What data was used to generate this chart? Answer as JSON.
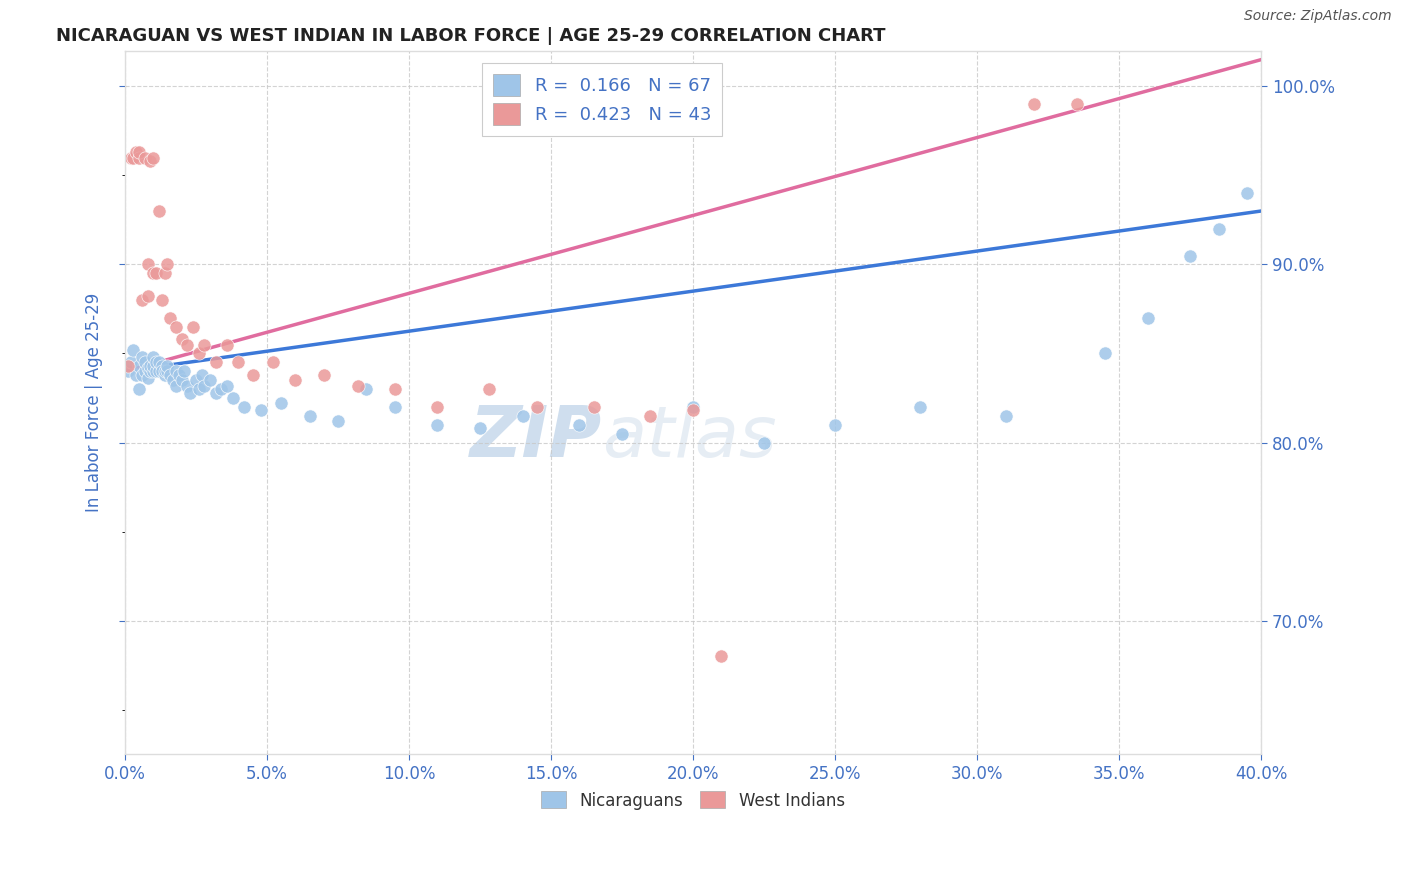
{
  "title": "NICARAGUAN VS WEST INDIAN IN LABOR FORCE | AGE 25-29 CORRELATION CHART",
  "source": "Source: ZipAtlas.com",
  "ylabel_left": "In Labor Force | Age 25-29",
  "xlim": [
    0.0,
    0.4
  ],
  "ylim": [
    0.625,
    1.02
  ],
  "legend_r1": "R =  0.166",
  "legend_n1": "N = 67",
  "legend_r2": "R =  0.423",
  "legend_n2": "N = 43",
  "blue_color": "#9fc5e8",
  "pink_color": "#ea9999",
  "blue_line_color": "#3c78d8",
  "pink_line_color": "#e06c9f",
  "label_nicaraguans": "Nicaraguans",
  "label_westindians": "West Indians",
  "watermark_zip": "ZIP",
  "watermark_atlas": "atlas",
  "title_color": "#222222",
  "axis_label_color": "#4472c4",
  "tick_color": "#4472c4",
  "grid_color": "#c8c8c8",
  "background_color": "#ffffff",
  "blue_trend_x0": 0.0,
  "blue_trend_y0": 0.84,
  "blue_trend_x1": 0.4,
  "blue_trend_y1": 0.93,
  "pink_trend_x0": 0.0,
  "pink_trend_y0": 0.84,
  "pink_trend_x1": 0.4,
  "pink_trend_y1": 1.015,
  "blue_scatter_x": [
    0.001,
    0.002,
    0.003,
    0.004,
    0.005,
    0.005,
    0.006,
    0.006,
    0.007,
    0.007,
    0.008,
    0.008,
    0.009,
    0.009,
    0.01,
    0.01,
    0.01,
    0.011,
    0.011,
    0.012,
    0.012,
    0.013,
    0.013,
    0.014,
    0.014,
    0.015,
    0.015,
    0.016,
    0.017,
    0.018,
    0.018,
    0.019,
    0.02,
    0.021,
    0.022,
    0.023,
    0.025,
    0.026,
    0.027,
    0.028,
    0.03,
    0.032,
    0.034,
    0.036,
    0.038,
    0.042,
    0.048,
    0.055,
    0.065,
    0.075,
    0.085,
    0.095,
    0.11,
    0.125,
    0.14,
    0.16,
    0.175,
    0.2,
    0.225,
    0.25,
    0.28,
    0.31,
    0.345,
    0.36,
    0.375,
    0.385,
    0.395
  ],
  "blue_scatter_y": [
    0.84,
    0.845,
    0.852,
    0.838,
    0.83,
    0.843,
    0.848,
    0.838,
    0.84,
    0.845,
    0.836,
    0.842,
    0.84,
    0.843,
    0.84,
    0.843,
    0.848,
    0.84,
    0.845,
    0.84,
    0.845,
    0.843,
    0.84,
    0.838,
    0.84,
    0.84,
    0.843,
    0.838,
    0.835,
    0.84,
    0.832,
    0.838,
    0.835,
    0.84,
    0.832,
    0.828,
    0.835,
    0.83,
    0.838,
    0.832,
    0.835,
    0.828,
    0.83,
    0.832,
    0.825,
    0.82,
    0.818,
    0.822,
    0.815,
    0.812,
    0.83,
    0.82,
    0.81,
    0.808,
    0.815,
    0.81,
    0.805,
    0.82,
    0.8,
    0.81,
    0.82,
    0.815,
    0.85,
    0.87,
    0.905,
    0.92,
    0.94
  ],
  "pink_scatter_x": [
    0.001,
    0.002,
    0.003,
    0.004,
    0.005,
    0.005,
    0.006,
    0.007,
    0.008,
    0.008,
    0.009,
    0.01,
    0.01,
    0.011,
    0.012,
    0.013,
    0.014,
    0.015,
    0.016,
    0.018,
    0.02,
    0.022,
    0.024,
    0.026,
    0.028,
    0.032,
    0.036,
    0.04,
    0.045,
    0.052,
    0.06,
    0.07,
    0.082,
    0.095,
    0.11,
    0.128,
    0.145,
    0.165,
    0.185,
    0.2,
    0.21,
    0.32,
    0.335
  ],
  "pink_scatter_y": [
    0.843,
    0.96,
    0.96,
    0.963,
    0.96,
    0.963,
    0.88,
    0.96,
    0.882,
    0.9,
    0.958,
    0.895,
    0.96,
    0.895,
    0.93,
    0.88,
    0.895,
    0.9,
    0.87,
    0.865,
    0.858,
    0.855,
    0.865,
    0.85,
    0.855,
    0.845,
    0.855,
    0.845,
    0.838,
    0.845,
    0.835,
    0.838,
    0.832,
    0.83,
    0.82,
    0.83,
    0.82,
    0.82,
    0.815,
    0.818,
    0.68,
    0.99,
    0.99
  ]
}
